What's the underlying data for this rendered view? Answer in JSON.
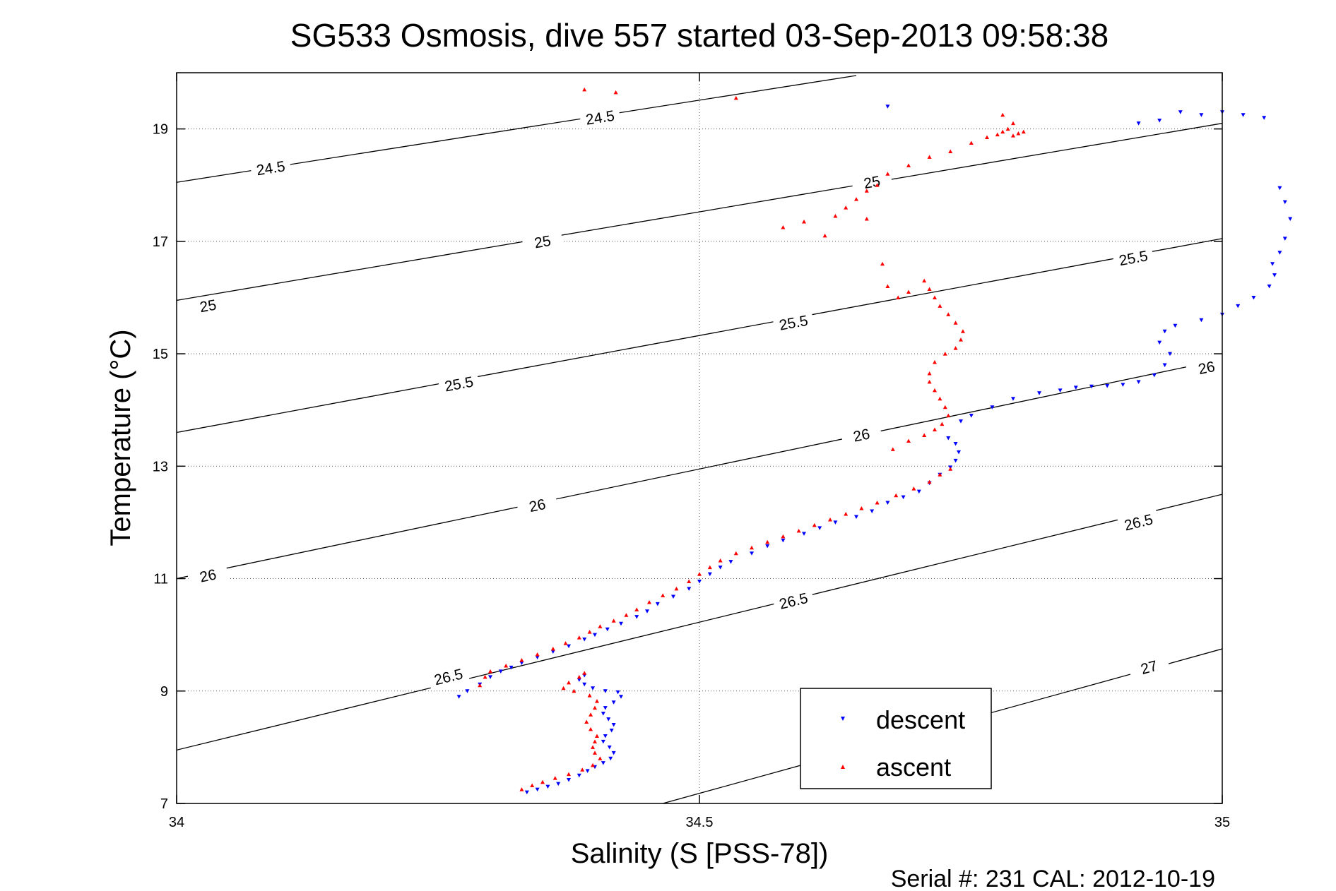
{
  "chart_data": {
    "type": "scatter",
    "title": "SG533 Osmosis, dive 557 started 03-Sep-2013 09:58:38",
    "xlabel": "Salinity (S [PSS-78])",
    "ylabel": "Temperature (°C)",
    "xlim": [
      34,
      35
    ],
    "ylim": [
      7,
      20
    ],
    "xticks": [
      34,
      34.5,
      35
    ],
    "xtick_labels": [
      "34",
      "34.5",
      "35"
    ],
    "yticks": [
      7,
      9,
      11,
      13,
      15,
      17,
      19
    ],
    "ytick_labels": [
      "7",
      "9",
      "11",
      "13",
      "15",
      "17",
      "19"
    ],
    "grid": true,
    "footer": "Serial #: 231  CAL: 2012-10-19",
    "legend": {
      "position": "bottom-right",
      "entries": [
        "descent",
        "ascent"
      ]
    },
    "colors": {
      "descent": "#0000ff",
      "ascent": "#ff0000",
      "contour": "#000000",
      "grid": "#555555"
    },
    "contours": [
      {
        "label": "24.5",
        "points": [
          [
            34,
            18.05
          ],
          [
            34.65,
            19.95
          ]
        ],
        "label_positions": [
          [
            34.09,
            18.3
          ],
          [
            34.405,
            19.2
          ]
        ]
      },
      {
        "label": "25",
        "points": [
          [
            34,
            15.95
          ],
          [
            35,
            19.1
          ]
        ],
        "label_positions": [
          [
            34.03,
            15.85
          ],
          [
            34.35,
            16.99
          ],
          [
            34.665,
            18.05
          ]
        ]
      },
      {
        "label": "25.5",
        "points": [
          [
            34,
            13.6
          ],
          [
            35,
            17.05
          ]
        ],
        "label_positions": [
          [
            34.27,
            14.46
          ],
          [
            34.59,
            15.55
          ],
          [
            34.915,
            16.7
          ]
        ]
      },
      {
        "label": "26",
        "points": [
          [
            34,
            11
          ],
          [
            35,
            14.9
          ]
        ],
        "label_positions": [
          [
            34.03,
            11.05
          ],
          [
            34.345,
            12.3
          ],
          [
            34.655,
            13.55
          ],
          [
            34.985,
            14.75
          ]
        ]
      },
      {
        "label": "26.5",
        "points": [
          [
            34,
            7.95
          ],
          [
            35,
            12.5
          ]
        ],
        "label_positions": [
          [
            34.26,
            9.25
          ],
          [
            34.59,
            10.6
          ],
          [
            34.92,
            12.0
          ]
        ]
      },
      {
        "label": "27",
        "points": [
          [
            34.465,
            7.0
          ],
          [
            35,
            9.75
          ]
        ],
        "label_positions": [
          [
            34.93,
            9.42
          ]
        ]
      }
    ],
    "series": [
      {
        "name": "descent",
        "marker": "triangle-down",
        "points": [
          [
            34.335,
            7.2
          ],
          [
            34.345,
            7.25
          ],
          [
            34.355,
            7.3
          ],
          [
            34.365,
            7.35
          ],
          [
            34.375,
            7.42
          ],
          [
            34.385,
            7.5
          ],
          [
            34.393,
            7.58
          ],
          [
            34.4,
            7.65
          ],
          [
            34.408,
            7.72
          ],
          [
            34.415,
            7.8
          ],
          [
            34.418,
            7.9
          ],
          [
            34.414,
            8.0
          ],
          [
            34.408,
            8.1
          ],
          [
            34.41,
            8.2
          ],
          [
            34.416,
            8.3
          ],
          [
            34.418,
            8.4
          ],
          [
            34.413,
            8.5
          ],
          [
            34.408,
            8.6
          ],
          [
            34.41,
            8.7
          ],
          [
            34.418,
            8.8
          ],
          [
            34.425,
            8.9
          ],
          [
            34.422,
            8.98
          ],
          [
            34.41,
            9.0
          ],
          [
            34.398,
            9.05
          ],
          [
            34.39,
            9.12
          ],
          [
            34.385,
            9.2
          ],
          [
            34.39,
            9.28
          ],
          [
            34.27,
            8.9
          ],
          [
            34.278,
            9.0
          ],
          [
            34.29,
            9.12
          ],
          [
            34.3,
            9.25
          ],
          [
            34.31,
            9.35
          ],
          [
            34.32,
            9.42
          ],
          [
            34.33,
            9.5
          ],
          [
            34.345,
            9.6
          ],
          [
            34.36,
            9.7
          ],
          [
            34.375,
            9.8
          ],
          [
            34.39,
            9.92
          ],
          [
            34.4,
            10.0
          ],
          [
            34.412,
            10.1
          ],
          [
            34.425,
            10.2
          ],
          [
            34.44,
            10.32
          ],
          [
            34.45,
            10.42
          ],
          [
            34.46,
            10.55
          ],
          [
            34.475,
            10.68
          ],
          [
            34.49,
            10.82
          ],
          [
            34.5,
            10.95
          ],
          [
            34.51,
            11.08
          ],
          [
            34.52,
            11.2
          ],
          [
            34.53,
            11.3
          ],
          [
            34.55,
            11.45
          ],
          [
            34.565,
            11.58
          ],
          [
            34.58,
            11.68
          ],
          [
            34.6,
            11.8
          ],
          [
            34.615,
            11.9
          ],
          [
            34.63,
            12.0
          ],
          [
            34.65,
            12.1
          ],
          [
            34.665,
            12.2
          ],
          [
            34.68,
            12.35
          ],
          [
            34.695,
            12.45
          ],
          [
            34.71,
            12.55
          ],
          [
            34.72,
            12.7
          ],
          [
            34.73,
            12.85
          ],
          [
            34.74,
            12.98
          ],
          [
            34.745,
            13.1
          ],
          [
            34.748,
            13.25
          ],
          [
            34.745,
            13.4
          ],
          [
            34.738,
            13.5
          ],
          [
            34.75,
            13.8
          ],
          [
            34.76,
            13.9
          ],
          [
            34.78,
            14.05
          ],
          [
            34.8,
            14.2
          ],
          [
            34.825,
            14.3
          ],
          [
            34.845,
            14.35
          ],
          [
            34.86,
            14.4
          ],
          [
            34.875,
            14.42
          ],
          [
            34.89,
            14.43
          ],
          [
            34.905,
            14.45
          ],
          [
            34.92,
            14.5
          ],
          [
            34.935,
            14.62
          ],
          [
            34.945,
            14.8
          ],
          [
            34.95,
            15.0
          ],
          [
            34.94,
            15.2
          ],
          [
            34.945,
            15.4
          ],
          [
            34.955,
            15.5
          ],
          [
            34.98,
            15.6
          ],
          [
            35.0,
            15.7
          ],
          [
            35.015,
            15.85
          ],
          [
            35.03,
            16.0
          ],
          [
            35.045,
            16.2
          ],
          [
            35.05,
            16.4
          ],
          [
            35.048,
            16.6
          ],
          [
            35.055,
            16.8
          ],
          [
            35.06,
            17.05
          ],
          [
            35.065,
            17.4
          ],
          [
            35.06,
            17.7
          ],
          [
            35.055,
            17.95
          ],
          [
            35.04,
            19.2
          ],
          [
            35.02,
            19.25
          ],
          [
            35.0,
            19.3
          ],
          [
            34.98,
            19.25
          ],
          [
            34.96,
            19.3
          ],
          [
            34.94,
            19.15
          ],
          [
            34.92,
            19.1
          ],
          [
            34.68,
            19.4
          ]
        ]
      },
      {
        "name": "ascent",
        "marker": "triangle-up",
        "points": [
          [
            34.33,
            7.25
          ],
          [
            34.34,
            7.32
          ],
          [
            34.35,
            7.38
          ],
          [
            34.362,
            7.45
          ],
          [
            34.375,
            7.52
          ],
          [
            34.388,
            7.6
          ],
          [
            34.398,
            7.68
          ],
          [
            34.405,
            7.8
          ],
          [
            34.4,
            7.9
          ],
          [
            34.398,
            8.0
          ],
          [
            34.4,
            8.1
          ],
          [
            34.402,
            8.2
          ],
          [
            34.396,
            8.32
          ],
          [
            34.392,
            8.45
          ],
          [
            34.396,
            8.58
          ],
          [
            34.4,
            8.7
          ],
          [
            34.402,
            8.82
          ],
          [
            34.395,
            8.92
          ],
          [
            34.38,
            9.0
          ],
          [
            34.37,
            9.05
          ],
          [
            34.375,
            9.15
          ],
          [
            34.385,
            9.25
          ],
          [
            34.39,
            9.32
          ],
          [
            34.29,
            9.1
          ],
          [
            34.295,
            9.25
          ],
          [
            34.3,
            9.35
          ],
          [
            34.315,
            9.45
          ],
          [
            34.33,
            9.55
          ],
          [
            34.345,
            9.65
          ],
          [
            34.36,
            9.75
          ],
          [
            34.372,
            9.85
          ],
          [
            34.385,
            9.95
          ],
          [
            34.395,
            10.05
          ],
          [
            34.405,
            10.15
          ],
          [
            34.418,
            10.25
          ],
          [
            34.43,
            10.35
          ],
          [
            34.44,
            10.45
          ],
          [
            34.452,
            10.58
          ],
          [
            34.465,
            10.7
          ],
          [
            34.478,
            10.82
          ],
          [
            34.49,
            10.95
          ],
          [
            34.5,
            11.08
          ],
          [
            34.51,
            11.2
          ],
          [
            34.52,
            11.32
          ],
          [
            34.535,
            11.45
          ],
          [
            34.55,
            11.55
          ],
          [
            34.565,
            11.65
          ],
          [
            34.58,
            11.75
          ],
          [
            34.595,
            11.85
          ],
          [
            34.61,
            11.95
          ],
          [
            34.625,
            12.05
          ],
          [
            34.64,
            12.15
          ],
          [
            34.655,
            12.25
          ],
          [
            34.67,
            12.35
          ],
          [
            34.688,
            12.48
          ],
          [
            34.705,
            12.6
          ],
          [
            34.72,
            12.72
          ],
          [
            34.73,
            12.85
          ],
          [
            34.74,
            12.95
          ],
          [
            34.685,
            13.3
          ],
          [
            34.7,
            13.45
          ],
          [
            34.715,
            13.55
          ],
          [
            34.725,
            13.65
          ],
          [
            34.732,
            13.75
          ],
          [
            34.738,
            13.9
          ],
          [
            34.735,
            14.05
          ],
          [
            34.73,
            14.2
          ],
          [
            34.725,
            14.35
          ],
          [
            34.72,
            14.5
          ],
          [
            34.72,
            14.65
          ],
          [
            34.725,
            14.85
          ],
          [
            34.735,
            15.0
          ],
          [
            34.745,
            15.1
          ],
          [
            34.75,
            15.25
          ],
          [
            34.752,
            15.4
          ],
          [
            34.745,
            15.55
          ],
          [
            34.738,
            15.7
          ],
          [
            34.73,
            15.85
          ],
          [
            34.725,
            16.0
          ],
          [
            34.72,
            16.15
          ],
          [
            34.715,
            16.3
          ],
          [
            34.7,
            16.1
          ],
          [
            34.68,
            16.2
          ],
          [
            34.69,
            16.0
          ],
          [
            34.675,
            16.6
          ],
          [
            34.58,
            17.25
          ],
          [
            34.6,
            17.35
          ],
          [
            34.62,
            17.1
          ],
          [
            34.63,
            17.45
          ],
          [
            34.64,
            17.6
          ],
          [
            34.65,
            17.75
          ],
          [
            34.66,
            17.9
          ],
          [
            34.67,
            18.0
          ],
          [
            34.66,
            17.4
          ],
          [
            34.68,
            18.2
          ],
          [
            34.7,
            18.35
          ],
          [
            34.72,
            18.5
          ],
          [
            34.74,
            18.6
          ],
          [
            34.76,
            18.75
          ],
          [
            34.775,
            18.85
          ],
          [
            34.785,
            18.9
          ],
          [
            34.79,
            18.95
          ],
          [
            34.795,
            19.0
          ],
          [
            34.8,
            18.88
          ],
          [
            34.805,
            18.92
          ],
          [
            34.81,
            18.95
          ],
          [
            34.8,
            19.1
          ],
          [
            34.79,
            19.25
          ],
          [
            34.39,
            19.7
          ],
          [
            34.42,
            19.65
          ],
          [
            34.535,
            19.55
          ]
        ]
      }
    ]
  }
}
